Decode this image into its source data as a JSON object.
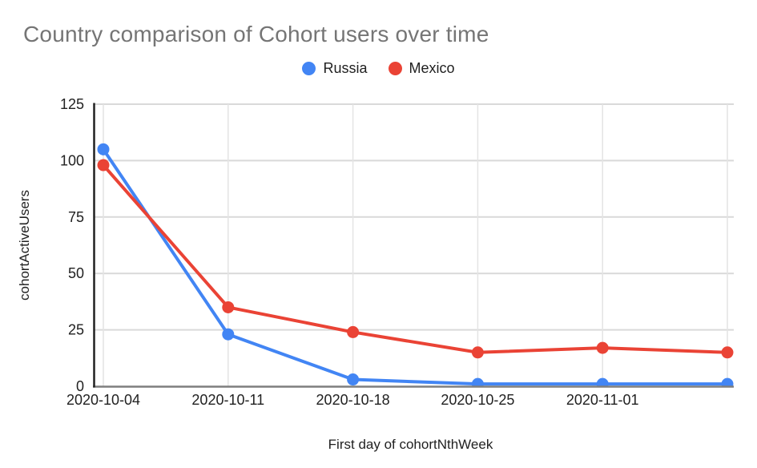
{
  "chart_data": {
    "type": "line",
    "title": "Country comparison of Cohort users over time",
    "xlabel": "First day of cohortNthWeek",
    "ylabel": "cohortActiveUsers",
    "x_tick_labels": [
      "2020-10-04",
      "2020-10-11",
      "2020-10-18",
      "2020-10-25",
      "2020-11-01"
    ],
    "num_points": 6,
    "series": [
      {
        "name": "Russia",
        "color": "#4285F4",
        "values": [
          105,
          23,
          3,
          1,
          1,
          1
        ]
      },
      {
        "name": "Mexico",
        "color": "#EA4335",
        "values": [
          98,
          35,
          24,
          15,
          17,
          15
        ]
      }
    ],
    "ylim": [
      0,
      125
    ],
    "yticks": [
      0,
      25,
      50,
      75,
      100,
      125
    ],
    "grid": true,
    "legend_position": "top-center",
    "title_color": "#757575",
    "axis_text_color": "#212121",
    "h_gridline_color": "#d9d9d9",
    "v_gridline_color": "#e4e4e4",
    "y_axis_line_color": "#212121",
    "x_axis_line_color": "#7f7f7f"
  }
}
